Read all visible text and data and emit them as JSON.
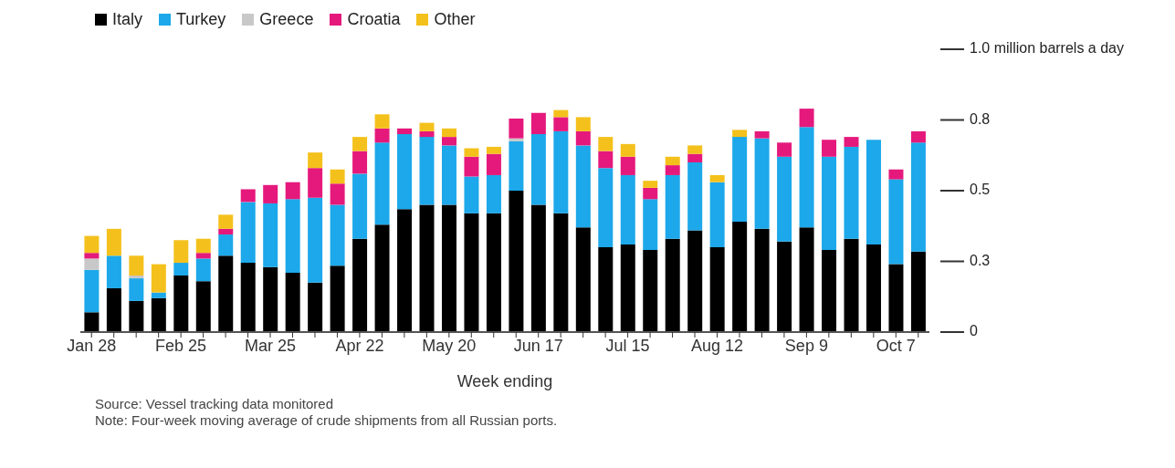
{
  "chart_data": {
    "type": "bar",
    "stacked": true,
    "legend": "top left",
    "xlabel": "Week ending",
    "categories": [
      "Jan 28",
      null,
      null,
      null,
      "Feb 25",
      null,
      null,
      null,
      "Mar 25",
      null,
      null,
      null,
      "Apr 22",
      null,
      null,
      null,
      "May 20",
      null,
      null,
      null,
      "Jun 17",
      null,
      null,
      null,
      "Jul 15",
      null,
      null,
      null,
      "Aug 12",
      null,
      null,
      null,
      "Sep 9",
      null,
      null,
      null,
      "Oct 7",
      null
    ],
    "ylim": [
      0,
      1
    ],
    "yticks": [
      0,
      {
        "value": 0.25,
        "label": "0.3"
      },
      0.5,
      {
        "value": 0.75,
        "label": "0.8"
      },
      {
        "value": 1,
        "label": "1.0 million barrels a day"
      }
    ],
    "series": [
      {
        "name": "Italy",
        "color": "#000000",
        "values": [
          0.07,
          0.155,
          0.11,
          0.12,
          0.2,
          0.18,
          0.27,
          0.245,
          0.23,
          0.21,
          0.175,
          0.235,
          0.33,
          0.38,
          0.435,
          0.45,
          0.45,
          0.42,
          0.42,
          0.5,
          0.45,
          0.42,
          0.37,
          0.3,
          0.31,
          0.29,
          0.33,
          0.36,
          0.3,
          0.39,
          0.365,
          0.32,
          0.37,
          0.29,
          0.33,
          0.31,
          0.24,
          0.285
        ]
      },
      {
        "name": "Turkey",
        "color": "#1ca8ea",
        "values": [
          0.15,
          0.115,
          0.08,
          0.02,
          0.045,
          0.08,
          0.075,
          0.215,
          0.225,
          0.26,
          0.3,
          0.215,
          0.23,
          0.29,
          0.265,
          0.24,
          0.21,
          0.13,
          0.135,
          0.175,
          0.25,
          0.29,
          0.29,
          0.28,
          0.245,
          0.18,
          0.225,
          0.24,
          0.23,
          0.3,
          0.32,
          0.3,
          0.355,
          0.33,
          0.325,
          0.37,
          0.3,
          0.385
        ]
      },
      {
        "name": "Greece",
        "color": "#c8c8c8",
        "values": [
          0.04,
          0,
          0.01,
          0,
          0,
          0,
          0,
          0,
          0,
          0,
          0,
          0,
          0,
          0,
          0,
          0,
          0,
          0,
          0,
          0.01,
          0,
          0,
          0,
          0,
          0,
          0,
          0,
          0,
          0,
          0,
          0,
          0,
          0,
          0,
          0,
          0,
          0,
          0
        ]
      },
      {
        "name": "Croatia",
        "color": "#e5197c",
        "values": [
          0.02,
          0,
          0,
          0,
          0,
          0.02,
          0.02,
          0.045,
          0.065,
          0.06,
          0.105,
          0.075,
          0.08,
          0.05,
          0.02,
          0.02,
          0.03,
          0.07,
          0.075,
          0.07,
          0.075,
          0.05,
          0.05,
          0.06,
          0.065,
          0.04,
          0.035,
          0.03,
          0,
          0,
          0.025,
          0.05,
          0.065,
          0.06,
          0.035,
          0,
          0.035,
          0.04
        ]
      },
      {
        "name": "Other",
        "color": "#f4c11c",
        "values": [
          0.06,
          0.095,
          0.07,
          0.1,
          0.08,
          0.05,
          0.05,
          0,
          0,
          0,
          0.055,
          0.05,
          0.05,
          0.05,
          0,
          0.03,
          0.03,
          0.03,
          0.025,
          0,
          0,
          0.025,
          0.05,
          0.05,
          0.045,
          0.025,
          0.03,
          0.03,
          0.025,
          0.025,
          0,
          0,
          0,
          0,
          0,
          0,
          0,
          0
        ]
      }
    ],
    "annotations": [
      "Source: Vessel tracking data monitored",
      "Note: Four-week moving average of crude shipments from all Russian ports."
    ]
  }
}
